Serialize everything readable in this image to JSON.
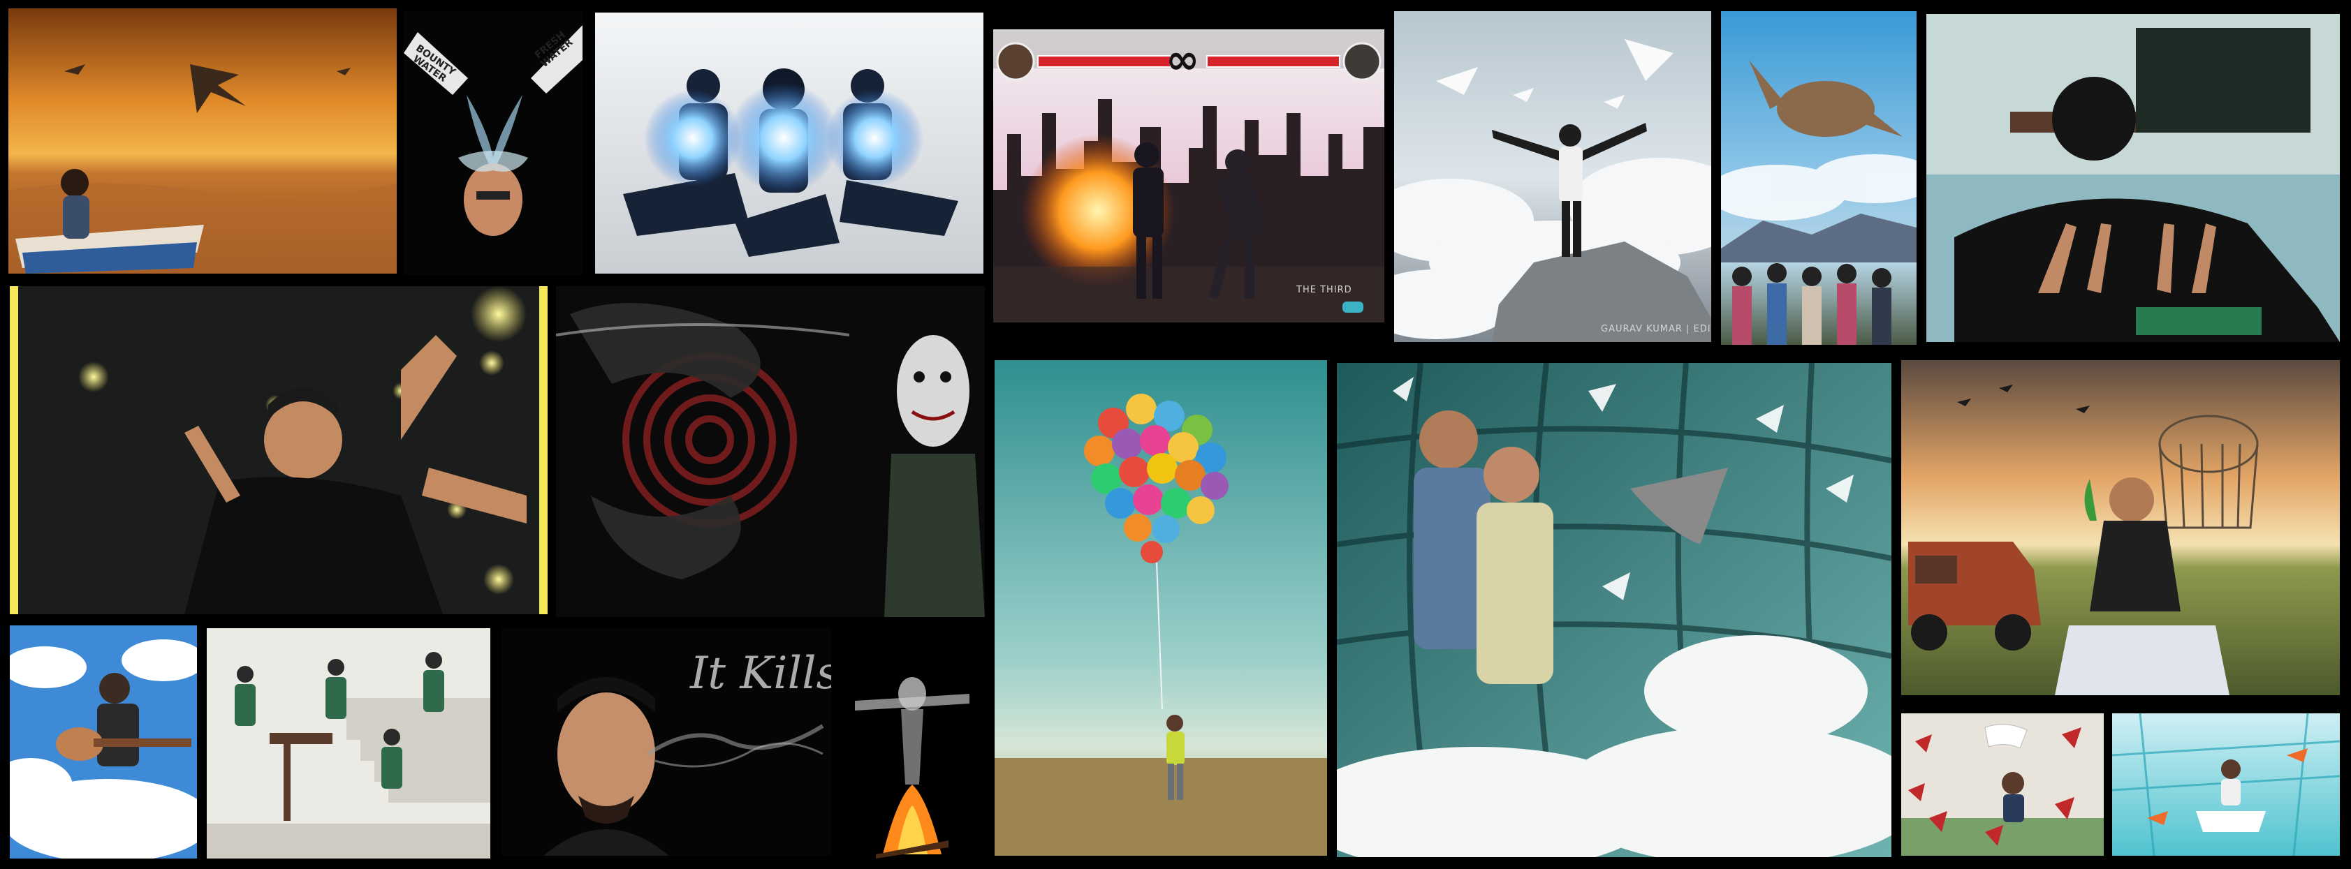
{
  "collage": {
    "background": "#000000",
    "tiles": [
      {
        "name": "desert-kites-photo",
        "subject": "girl on boat in desert with flying kites"
      },
      {
        "name": "bottle-pour-photo",
        "subject": "two bottles pouring onto a head",
        "labels": {
          "bottle_left": "BOUNTY WATER",
          "bottle_right": "FRESH WATER"
        }
      },
      {
        "name": "glowing-orbs-clones-photo",
        "subject": "three clones holding glowing orbs"
      },
      {
        "name": "fighting-game-photo",
        "subject": "fighting game style scene with city skyline",
        "hud": {
          "vs_symbol": "∞",
          "corner_text": "THE THIRD"
        }
      },
      {
        "name": "clouds-doves-photo",
        "subject": "man on rock among clouds and doves",
        "caption": "GAURAV KUMAR | EDIT"
      },
      {
        "name": "turtle-sky-photo",
        "subject": "flying turtle over group of friends"
      },
      {
        "name": "hands-gesture-photo",
        "subject": "person with hidden face making hand gestures"
      },
      {
        "name": "fireflies-photo",
        "subject": "smiling man with raised hands and fireflies"
      },
      {
        "name": "dark-spiral-photo",
        "subject": "dark grunge spiral art with puppet face"
      },
      {
        "name": "balloons-field-photo",
        "subject": "man holding bunch of balloons in a field"
      },
      {
        "name": "feathers-couple-photo",
        "subject": "couple standing among feathers and clouds"
      },
      {
        "name": "birdcage-sunset-photo",
        "subject": "man sitting in field with birdcage and truck"
      },
      {
        "name": "guitar-clouds-photo",
        "subject": "boy with guitar on clouds"
      },
      {
        "name": "stairs-clones-photo",
        "subject": "clones on staircase"
      },
      {
        "name": "smoke-script-photo",
        "subject": "man exhaling smoke",
        "script_text": "It Kills"
      },
      {
        "name": "fire-figure-photo",
        "subject": "ghostly figure above campfire"
      },
      {
        "name": "red-leaves-photo",
        "subject": "boy reading among red leaves"
      },
      {
        "name": "fishbowl-photo",
        "subject": "person in underwater fishbowl scene"
      }
    ]
  }
}
